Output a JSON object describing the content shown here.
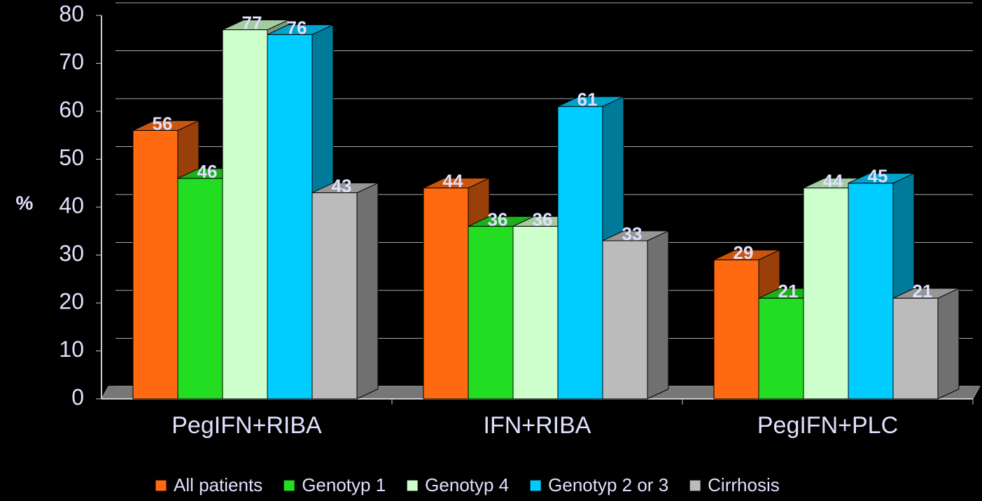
{
  "chart_data": {
    "type": "bar",
    "y_label": "%",
    "categories": [
      "PegIFN+RIBA",
      "IFN+RIBA",
      "PegIFN+PLC"
    ],
    "series": [
      {
        "name": "All patients",
        "color": "#ff6a10",
        "values": [
          56,
          44,
          29
        ]
      },
      {
        "name": "Genotyp 1",
        "color": "#22dd22",
        "values": [
          46,
          36,
          21
        ]
      },
      {
        "name": "Genotyp 4",
        "color": "#ccffcc",
        "values": [
          77,
          36,
          44
        ]
      },
      {
        "name": "Genotyp 2 or 3",
        "color": "#00ccff",
        "values": [
          76,
          61,
          45
        ]
      },
      {
        "name": "Cirrhosis",
        "color": "#bbbbbb",
        "values": [
          43,
          33,
          21
        ]
      }
    ],
    "ylim": [
      0,
      80
    ],
    "yticks": [
      0,
      10,
      20,
      30,
      40,
      50,
      60,
      70,
      80
    ],
    "grid": true,
    "legend": "bottom"
  }
}
